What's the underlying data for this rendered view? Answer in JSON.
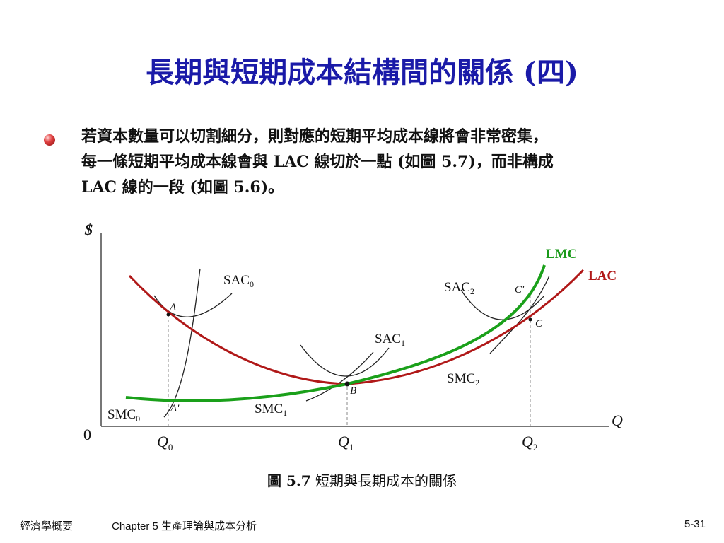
{
  "slide": {
    "title": "長期與短期成本結構間的關係 (四)",
    "body_lines": [
      "若資本數量可以切割細分，則對應的短期平均成本線將會非常密集，",
      "每一條短期平均成本線會與  LAC  線切於一點  (如圖  5.7)，而非構成",
      "LAC 線的一段 (如圖 5.6)。"
    ],
    "caption_prefix": "圖 5.7",
    "caption_text": " 短期與長期成本的關係",
    "footer_left": "經濟學概要",
    "footer_middle": "Chapter 5 生產理論與成本分析",
    "footer_right": "5-31"
  },
  "diagram": {
    "y_axis_label": "$",
    "x_axis_label": "Q",
    "origin_label": "0",
    "x_ticks": [
      {
        "base": "Q",
        "sub": "0"
      },
      {
        "base": "Q",
        "sub": "1"
      },
      {
        "base": "Q",
        "sub": "2"
      }
    ],
    "curve_labels": {
      "lmc": "LMC",
      "lac": "LAC",
      "sac0": {
        "base": "SAC",
        "sub": "0"
      },
      "sac1": {
        "base": "SAC",
        "sub": "1"
      },
      "sac2": {
        "base": "SAC",
        "sub": "2"
      },
      "smc0": {
        "base": "SMC",
        "sub": "0"
      },
      "smc1": {
        "base": "SMC",
        "sub": "1"
      },
      "smc2": {
        "base": "SMC",
        "sub": "2"
      }
    },
    "point_labels": {
      "a": "A",
      "a_prime": "A'",
      "b": "B",
      "c": "C",
      "c_prime": "C'"
    },
    "colors": {
      "lmc": "#1aa01a",
      "lac": "#b01818",
      "short_run": "#222222",
      "lmc_label": "#1a9a1a",
      "lac_label": "#b01818"
    }
  }
}
